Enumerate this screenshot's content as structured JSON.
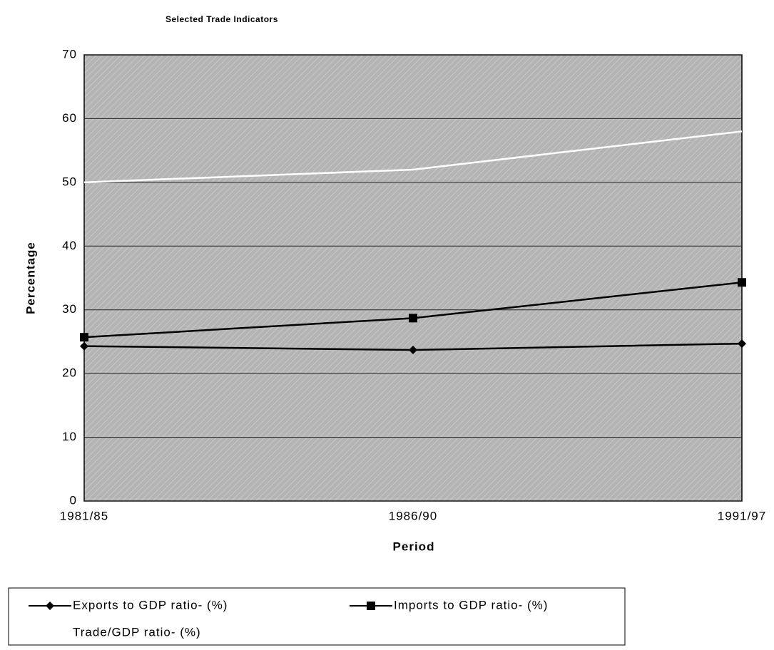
{
  "chart_data": {
    "type": "line",
    "title": "Selected Trade Indicators",
    "x_label": "Period",
    "y_label": "Percentage",
    "categories": [
      "1981/85",
      "1986/90",
      "1991/97"
    ],
    "series": [
      {
        "name": "Exports to GDP ratio- (%)",
        "color": "#000000",
        "marker": "diamond",
        "values": [
          24.3,
          23.7,
          24.7
        ]
      },
      {
        "name": "Imports to GDP ratio- (%)",
        "color": "#000000",
        "marker": "square",
        "values": [
          25.7,
          28.7,
          34.3
        ]
      },
      {
        "name": "Trade/GDP ratio- (%)",
        "color": "#ffffff",
        "marker": "none",
        "values": [
          50,
          52,
          58
        ]
      }
    ],
    "ylim": [
      0,
      70
    ],
    "yticks": [
      0,
      10,
      20,
      30,
      40,
      50,
      60,
      70
    ],
    "grid": true,
    "legend": "bottom"
  }
}
